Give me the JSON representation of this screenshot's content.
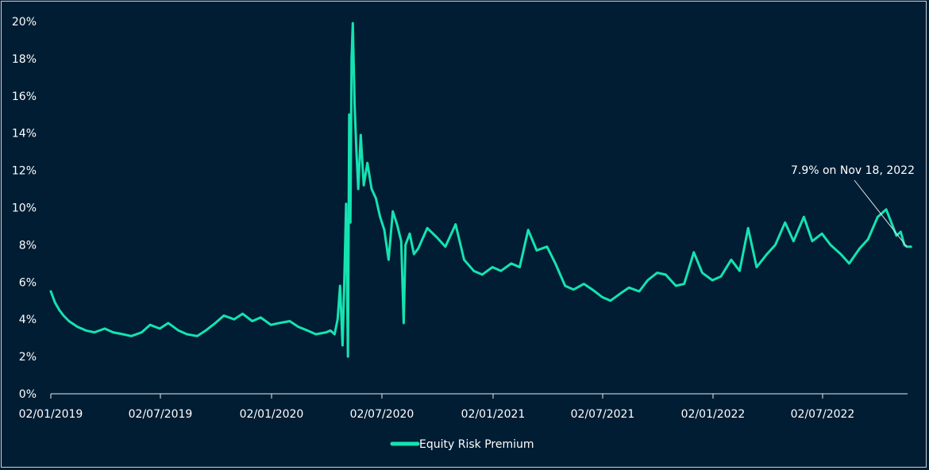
{
  "chart_data": {
    "type": "line",
    "title": "",
    "xlabel": "",
    "ylabel": "",
    "ylim": [
      0,
      20
    ],
    "y_ticks": [
      "0%",
      "2%",
      "4%",
      "6%",
      "8%",
      "10%",
      "12%",
      "14%",
      "16%",
      "18%",
      "20%"
    ],
    "x_ticks": [
      "02/01/2019",
      "02/07/2019",
      "02/01/2020",
      "02/07/2020",
      "02/01/2021",
      "02/07/2021",
      "02/01/2022",
      "02/07/2022"
    ],
    "x_range": [
      "2019-01-02",
      "2022-11-25"
    ],
    "grid": false,
    "legend": "bottom-center",
    "series": [
      {
        "name": "Equity Risk Premium",
        "color": "#14e3b1",
        "points": [
          [
            "2019-01-02",
            5.5
          ],
          [
            "2019-01-09",
            4.9
          ],
          [
            "2019-01-16",
            4.5
          ],
          [
            "2019-01-23",
            4.2
          ],
          [
            "2019-02-01",
            3.9
          ],
          [
            "2019-02-15",
            3.6
          ],
          [
            "2019-03-01",
            3.4
          ],
          [
            "2019-03-15",
            3.3
          ],
          [
            "2019-04-01",
            3.5
          ],
          [
            "2019-04-15",
            3.3
          ],
          [
            "2019-05-01",
            3.2
          ],
          [
            "2019-05-15",
            3.1
          ],
          [
            "2019-06-01",
            3.3
          ],
          [
            "2019-06-15",
            3.7
          ],
          [
            "2019-07-01",
            3.5
          ],
          [
            "2019-07-15",
            3.8
          ],
          [
            "2019-08-01",
            3.4
          ],
          [
            "2019-08-15",
            3.2
          ],
          [
            "2019-09-01",
            3.1
          ],
          [
            "2019-09-15",
            3.4
          ],
          [
            "2019-10-01",
            3.8
          ],
          [
            "2019-10-15",
            4.2
          ],
          [
            "2019-11-01",
            4.0
          ],
          [
            "2019-11-15",
            4.3
          ],
          [
            "2019-12-01",
            3.9
          ],
          [
            "2019-12-15",
            4.1
          ],
          [
            "2020-01-01",
            3.7
          ],
          [
            "2020-01-15",
            3.8
          ],
          [
            "2020-02-01",
            3.9
          ],
          [
            "2020-02-15",
            3.6
          ],
          [
            "2020-03-01",
            3.4
          ],
          [
            "2020-03-15",
            3.2
          ],
          [
            "2020-04-01",
            3.3
          ],
          [
            "2020-04-08",
            3.4
          ],
          [
            "2020-04-15",
            3.2
          ],
          [
            "2020-04-20",
            4.0
          ],
          [
            "2020-04-24",
            5.8
          ],
          [
            "2020-04-28",
            2.6
          ],
          [
            "2020-05-01",
            6.0
          ],
          [
            "2020-05-04",
            10.2
          ],
          [
            "2020-05-07",
            2.0
          ],
          [
            "2020-05-09",
            15.0
          ],
          [
            "2020-05-11",
            9.2
          ],
          [
            "2020-05-13",
            18.0
          ],
          [
            "2020-05-15",
            19.9
          ],
          [
            "2020-05-18",
            15.5
          ],
          [
            "2020-05-21",
            13.0
          ],
          [
            "2020-05-24",
            11.0
          ],
          [
            "2020-05-28",
            13.9
          ],
          [
            "2020-06-02",
            11.2
          ],
          [
            "2020-06-08",
            12.4
          ],
          [
            "2020-06-15",
            11.0
          ],
          [
            "2020-06-22",
            10.5
          ],
          [
            "2020-06-29",
            9.5
          ],
          [
            "2020-07-06",
            8.8
          ],
          [
            "2020-07-13",
            7.2
          ],
          [
            "2020-07-20",
            9.8
          ],
          [
            "2020-07-27",
            9.1
          ],
          [
            "2020-08-03",
            8.2
          ],
          [
            "2020-08-07",
            3.8
          ],
          [
            "2020-08-10",
            8.0
          ],
          [
            "2020-08-17",
            8.6
          ],
          [
            "2020-08-24",
            7.5
          ],
          [
            "2020-08-31",
            7.8
          ],
          [
            "2020-09-15",
            8.9
          ],
          [
            "2020-10-01",
            8.4
          ],
          [
            "2020-10-15",
            7.9
          ],
          [
            "2020-11-01",
            9.1
          ],
          [
            "2020-11-15",
            7.2
          ],
          [
            "2020-12-01",
            6.6
          ],
          [
            "2020-12-15",
            6.4
          ],
          [
            "2021-01-01",
            6.8
          ],
          [
            "2021-01-15",
            6.6
          ],
          [
            "2021-02-01",
            7.0
          ],
          [
            "2021-02-15",
            6.8
          ],
          [
            "2021-03-01",
            8.8
          ],
          [
            "2021-03-15",
            7.7
          ],
          [
            "2021-04-01",
            7.9
          ],
          [
            "2021-04-15",
            7.0
          ],
          [
            "2021-05-01",
            5.8
          ],
          [
            "2021-05-15",
            5.6
          ],
          [
            "2021-06-01",
            5.9
          ],
          [
            "2021-06-15",
            5.6
          ],
          [
            "2021-07-01",
            5.2
          ],
          [
            "2021-07-15",
            5.0
          ],
          [
            "2021-08-01",
            5.4
          ],
          [
            "2021-08-15",
            5.7
          ],
          [
            "2021-09-01",
            5.5
          ],
          [
            "2021-09-15",
            6.1
          ],
          [
            "2021-10-01",
            6.5
          ],
          [
            "2021-10-15",
            6.4
          ],
          [
            "2021-11-01",
            5.8
          ],
          [
            "2021-11-15",
            5.9
          ],
          [
            "2021-12-01",
            7.6
          ],
          [
            "2021-12-15",
            6.5
          ],
          [
            "2022-01-01",
            6.1
          ],
          [
            "2022-01-15",
            6.3
          ],
          [
            "2022-02-01",
            7.2
          ],
          [
            "2022-02-15",
            6.6
          ],
          [
            "2022-03-01",
            8.9
          ],
          [
            "2022-03-15",
            6.8
          ],
          [
            "2022-04-01",
            7.5
          ],
          [
            "2022-04-15",
            8.0
          ],
          [
            "2022-05-01",
            9.2
          ],
          [
            "2022-05-15",
            8.2
          ],
          [
            "2022-06-01",
            9.5
          ],
          [
            "2022-06-15",
            8.2
          ],
          [
            "2022-07-01",
            8.6
          ],
          [
            "2022-07-15",
            8.0
          ],
          [
            "2022-08-01",
            7.5
          ],
          [
            "2022-08-15",
            7.0
          ],
          [
            "2022-09-01",
            7.8
          ],
          [
            "2022-09-15",
            8.3
          ],
          [
            "2022-10-01",
            9.5
          ],
          [
            "2022-10-15",
            9.9
          ],
          [
            "2022-11-01",
            8.5
          ],
          [
            "2022-11-08",
            8.7
          ],
          [
            "2022-11-14",
            8.0
          ],
          [
            "2022-11-18",
            7.9
          ],
          [
            "2022-11-25",
            7.9
          ]
        ]
      }
    ],
    "annotations": [
      {
        "text": "7.9% on Nov 18, 2022",
        "x": "2022-11-18",
        "y": 7.9
      }
    ]
  }
}
